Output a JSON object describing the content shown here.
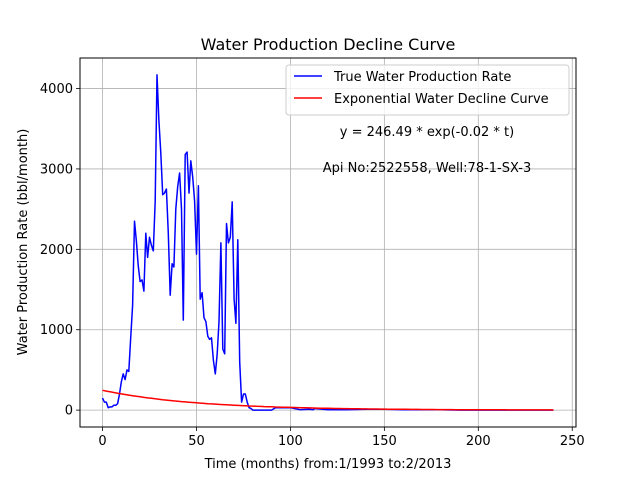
{
  "chart_data": {
    "type": "line",
    "title": "Water Production Decline Curve",
    "xlabel": "Time (months) from:1/1993 to:2/2013",
    "ylabel": "Water Production Rate (bbl/month)",
    "xlim": [
      -12,
      252
    ],
    "ylim": [
      -210,
      4380
    ],
    "xticks": [
      0,
      50,
      100,
      150,
      200,
      250
    ],
    "yticks": [
      0,
      1000,
      2000,
      3000,
      4000
    ],
    "grid": true,
    "legend_position": "top-right",
    "annotations": [
      "y = 246.49 * exp(-0.02 * t)",
      "Api No:2522558, Well:78-1-SX-3"
    ],
    "series": [
      {
        "name": "True Water Production Rate",
        "color": "#0000ff",
        "x": [
          0,
          1,
          2,
          3,
          4,
          5,
          6,
          7,
          8,
          9,
          10,
          11,
          12,
          13,
          14,
          15,
          16,
          17,
          18,
          19,
          20,
          21,
          22,
          23,
          24,
          25,
          26,
          27,
          28,
          29,
          30,
          31,
          32,
          33,
          34,
          35,
          36,
          37,
          38,
          39,
          40,
          41,
          42,
          43,
          44,
          45,
          46,
          47,
          48,
          49,
          50,
          51,
          52,
          53,
          54,
          55,
          56,
          57,
          58,
          59,
          60,
          61,
          62,
          63,
          64,
          65,
          66,
          67,
          68,
          69,
          70,
          71,
          72,
          73,
          74,
          75,
          76,
          77,
          78,
          79,
          80,
          85,
          90,
          92,
          95,
          98,
          100,
          105,
          110,
          112,
          113,
          120,
          130,
          140,
          150,
          160,
          170,
          180,
          190,
          200,
          210,
          220,
          230,
          240
        ],
        "y": [
          150,
          100,
          100,
          30,
          40,
          40,
          60,
          60,
          80,
          200,
          350,
          450,
          380,
          500,
          480,
          900,
          1300,
          2350,
          2100,
          1800,
          1600,
          1620,
          1480,
          2200,
          1900,
          2150,
          2050,
          1980,
          2600,
          4170,
          3600,
          3200,
          2680,
          2700,
          2750,
          2200,
          1430,
          1820,
          1780,
          2500,
          2780,
          2950,
          2500,
          1120,
          3180,
          3210,
          2700,
          3100,
          2900,
          2600,
          1940,
          2790,
          1380,
          1460,
          1150,
          1100,
          920,
          880,
          900,
          620,
          450,
          700,
          1100,
          2080,
          760,
          700,
          2320,
          2080,
          2150,
          2590,
          1380,
          1080,
          2120,
          600,
          100,
          200,
          200,
          100,
          30,
          20,
          0,
          0,
          0,
          30,
          30,
          30,
          30,
          5,
          10,
          5,
          20,
          5,
          5,
          10,
          10,
          5,
          5,
          5,
          0,
          0,
          0,
          0,
          0,
          0
        ]
      },
      {
        "name": "Exponential Water Decline Curve",
        "color": "#ff0000",
        "equation": {
          "a": 246.49,
          "b": -0.02
        },
        "x_range": [
          0,
          240
        ]
      }
    ]
  }
}
